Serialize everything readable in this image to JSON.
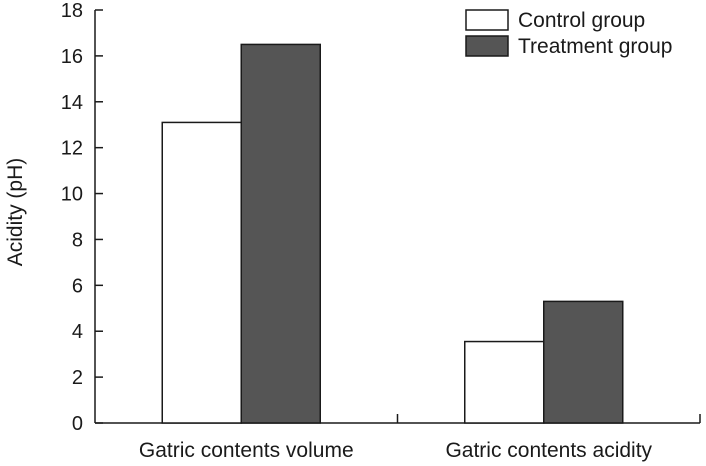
{
  "chart_data": {
    "type": "bar",
    "title": "",
    "xlabel": "",
    "ylabel": "Acidity (pH)",
    "ylim": [
      0,
      18
    ],
    "yticks": [
      0,
      2,
      4,
      6,
      8,
      10,
      12,
      14,
      16,
      18
    ],
    "categories": [
      "Gatric contents volume",
      "Gatric contents acidity"
    ],
    "series": [
      {
        "name": "Control group",
        "values": [
          13.1,
          3.55
        ],
        "color": "#ffffff"
      },
      {
        "name": "Treatment group",
        "values": [
          16.5,
          5.3
        ],
        "color": "#555555"
      }
    ],
    "grid": false,
    "legend_position": "top-right"
  }
}
